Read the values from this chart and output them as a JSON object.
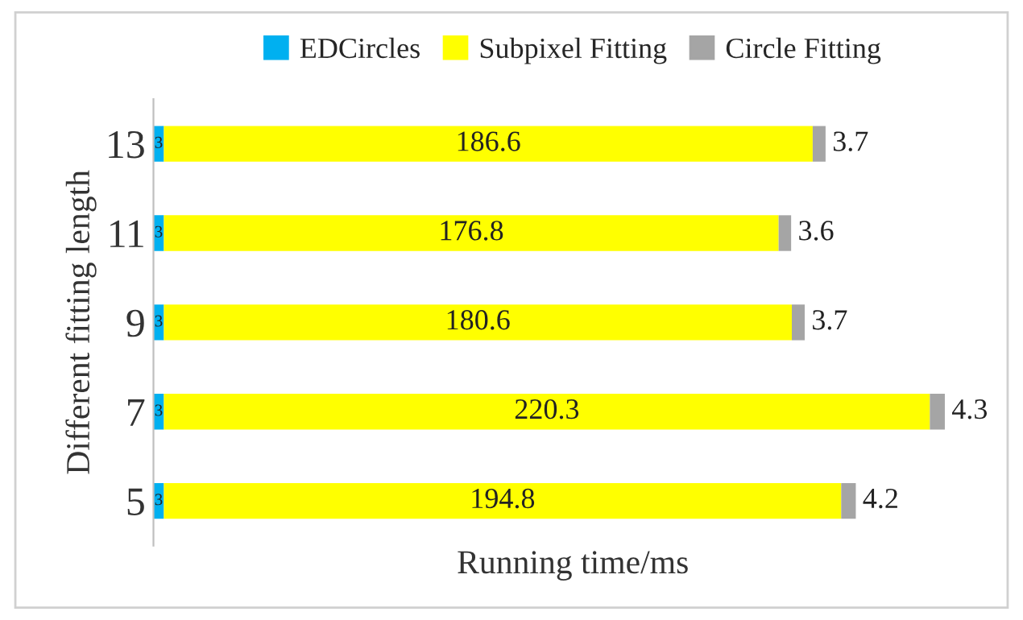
{
  "chart_data": {
    "type": "bar",
    "orientation": "horizontal",
    "stacked": true,
    "xlabel": "Running time/ms",
    "ylabel": "Different fitting length",
    "categories": [
      "13",
      "11",
      "9",
      "7",
      "5"
    ],
    "series": [
      {
        "name": "EDCircles",
        "color": "#00b0f0",
        "values": [
          3,
          3,
          3,
          3,
          3
        ]
      },
      {
        "name": "Subpixel Fitting",
        "color": "#ffff00",
        "values": [
          186.6,
          176.8,
          180.6,
          220.3,
          194.8
        ]
      },
      {
        "name": "Circle Fitting",
        "color": "#a5a5a5",
        "values": [
          3.7,
          3.6,
          3.7,
          4.3,
          4.2
        ]
      }
    ],
    "tick_labels": "y",
    "data_labels": true,
    "legend": "top",
    "grid": false
  }
}
